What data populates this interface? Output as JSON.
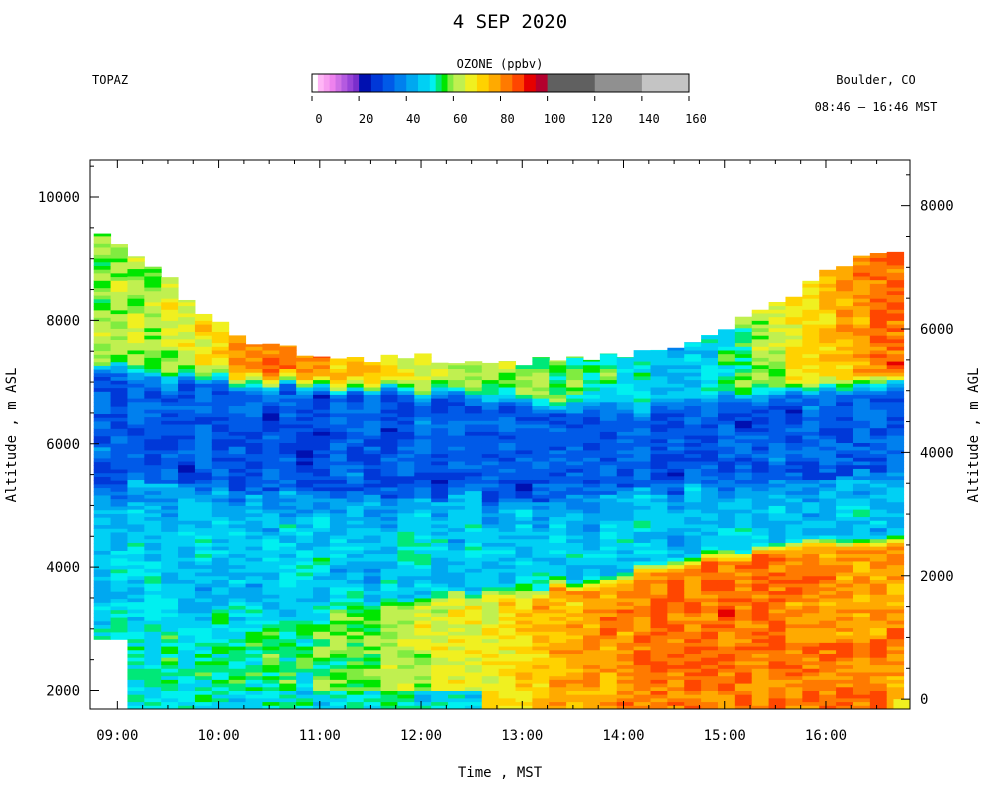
{
  "header": {
    "title": "4 SEP 2020",
    "instrument": "TOPAZ",
    "location": "Boulder, CO",
    "time_range": "08:46 – 16:46 MST"
  },
  "colorbar": {
    "title": "OZONE (ppbv)",
    "ticks": [
      0,
      20,
      40,
      60,
      80,
      100,
      120,
      140,
      160
    ],
    "range": [
      0,
      160
    ],
    "segments": [
      {
        "from": 0,
        "to": 2.5,
        "color": "#ffffff"
      },
      {
        "from": 2.5,
        "to": 5,
        "color": "#ffb6f6"
      },
      {
        "from": 5,
        "to": 7.5,
        "color": "#f79ef0"
      },
      {
        "from": 7.5,
        "to": 10,
        "color": "#ee82ee"
      },
      {
        "from": 10,
        "to": 12.5,
        "color": "#d070e6"
      },
      {
        "from": 12.5,
        "to": 15,
        "color": "#b45ae0"
      },
      {
        "from": 15,
        "to": 17.5,
        "color": "#9844d8"
      },
      {
        "from": 17.5,
        "to": 20,
        "color": "#7a2fcc"
      },
      {
        "from": 20,
        "to": 25,
        "color": "#0010b0"
      },
      {
        "from": 25,
        "to": 30,
        "color": "#0038d8"
      },
      {
        "from": 30,
        "to": 35,
        "color": "#005ae8"
      },
      {
        "from": 35,
        "to": 40,
        "color": "#0080ee"
      },
      {
        "from": 40,
        "to": 45,
        "color": "#00a8f0"
      },
      {
        "from": 45,
        "to": 50,
        "color": "#00d0f4"
      },
      {
        "from": 50,
        "to": 52.5,
        "color": "#00f0f0"
      },
      {
        "from": 52.5,
        "to": 55,
        "color": "#00e878"
      },
      {
        "from": 55,
        "to": 57.5,
        "color": "#00e600"
      },
      {
        "from": 57.5,
        "to": 60,
        "color": "#80ec40"
      },
      {
        "from": 60,
        "to": 65,
        "color": "#c0f050"
      },
      {
        "from": 65,
        "to": 70,
        "color": "#f0f020"
      },
      {
        "from": 70,
        "to": 75,
        "color": "#ffd200"
      },
      {
        "from": 75,
        "to": 80,
        "color": "#ffaa00"
      },
      {
        "from": 80,
        "to": 85,
        "color": "#ff7a00"
      },
      {
        "from": 85,
        "to": 90,
        "color": "#ff4600"
      },
      {
        "from": 90,
        "to": 95,
        "color": "#e60000"
      },
      {
        "from": 95,
        "to": 100,
        "color": "#b4002e"
      },
      {
        "from": 100,
        "to": 120,
        "color": "#606060"
      },
      {
        "from": 120,
        "to": 140,
        "color": "#909090"
      },
      {
        "from": 140,
        "to": 160,
        "color": "#c4c4c4"
      }
    ]
  },
  "chart_data": {
    "type": "heatmap",
    "xlabel": "Time , MST",
    "ylabel_left": "Altitude , m ASL",
    "ylabel_right": "Altitude , m AGL",
    "x_ticks": [
      "09:00",
      "10:00",
      "11:00",
      "12:00",
      "13:00",
      "14:00",
      "15:00",
      "16:00"
    ],
    "x_range_hours": [
      8.73,
      16.83
    ],
    "y_left_ticks": [
      2000,
      4000,
      6000,
      8000,
      10000
    ],
    "y_left_range": [
      1700,
      10600
    ],
    "y_right_ticks": [
      0,
      2000,
      4000,
      6000,
      8000
    ],
    "y_right_offset": 1860,
    "start_time": "08:46",
    "end_time": "16:46",
    "profile_interval_min": 10,
    "layer_thickness_m": 60,
    "top_altitude_ASL": [
      [
        8.77,
        9400
      ],
      [
        9.33,
        8900
      ],
      [
        9.67,
        8400
      ],
      [
        10.0,
        8000
      ],
      [
        10.33,
        7700
      ],
      [
        10.67,
        7550
      ],
      [
        11.0,
        7450
      ],
      [
        11.33,
        7380
      ],
      [
        12.0,
        7400
      ],
      [
        12.5,
        7380
      ],
      [
        13.0,
        7330
      ],
      [
        13.5,
        7380
      ],
      [
        14.0,
        7420
      ],
      [
        14.5,
        7540
      ],
      [
        15.0,
        7850
      ],
      [
        15.33,
        8150
      ],
      [
        15.67,
        8450
      ],
      [
        16.0,
        8750
      ],
      [
        16.33,
        9000
      ],
      [
        16.6,
        9050
      ]
    ],
    "key_altitudes_ASL": [
      {
        "hour": 9.0,
        "boundary_layer_top": 2900,
        "upper_blue_bottom": 5300,
        "upper_blue_top": 6900
      },
      {
        "hour": 10.0,
        "boundary_layer_top": 3050,
        "upper_blue_bottom": 5200,
        "upper_blue_top": 6800
      },
      {
        "hour": 11.0,
        "boundary_layer_top": 3150,
        "upper_blue_bottom": 5150,
        "upper_blue_top": 6700
      },
      {
        "hour": 12.0,
        "boundary_layer_top": 3300,
        "upper_blue_bottom": 5100,
        "upper_blue_top": 6600
      },
      {
        "hour": 13.0,
        "boundary_layer_top": 3500,
        "upper_blue_bottom": 5100,
        "upper_blue_top": 6400
      },
      {
        "hour": 14.0,
        "boundary_layer_top": 3800,
        "upper_blue_bottom": 5200,
        "upper_blue_top": 6300
      },
      {
        "hour": 15.0,
        "boundary_layer_top": 4100,
        "upper_blue_bottom": 5300,
        "upper_blue_top": 6500
      },
      {
        "hour": 16.0,
        "boundary_layer_top": 4300,
        "upper_blue_bottom": 5500,
        "upper_blue_top": 6700
      }
    ],
    "bl_ozone_ppbv": [
      [
        8.75,
        50
      ],
      [
        10.5,
        54
      ],
      [
        12.0,
        64
      ],
      [
        12.75,
        70
      ],
      [
        13.5,
        78
      ],
      [
        14.5,
        84
      ],
      [
        16.5,
        80
      ]
    ],
    "lower_free_trop_ozone_ppbv": 47,
    "upper_blue_ozone_ppbv": 32,
    "top_layer_ozone_ppbv": [
      [
        8.75,
        60
      ],
      [
        9.5,
        64
      ],
      [
        10.5,
        84
      ],
      [
        11.5,
        70
      ],
      [
        12.5,
        60
      ],
      [
        13.5,
        56
      ],
      [
        14.5,
        44
      ],
      [
        15.5,
        66
      ],
      [
        16.5,
        84
      ]
    ]
  }
}
